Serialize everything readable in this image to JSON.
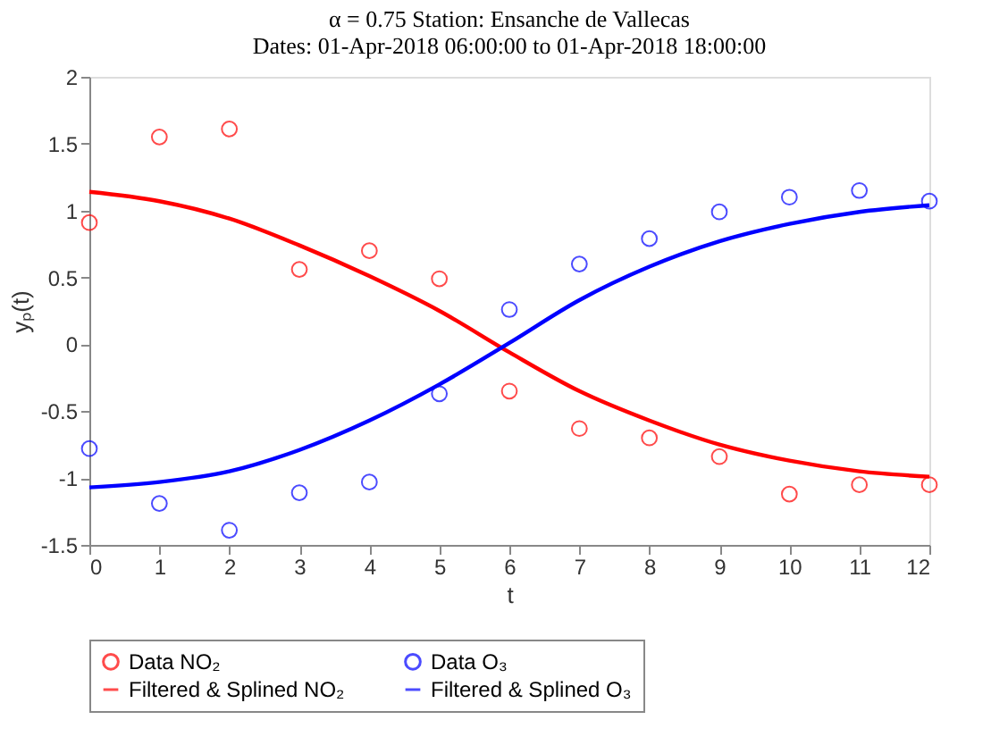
{
  "chart_data": {
    "type": "scatter",
    "title": [
      "α = 0.75 Station: Ensanche de Vallecas",
      "Dates: 01-Apr-2018 06:00:00 to 01-Apr-2018 18:00:00"
    ],
    "xlabel": "t",
    "ylabel": "yₚ(t)",
    "x": [
      0,
      1,
      2,
      3,
      4,
      5,
      6,
      7,
      8,
      9,
      10,
      11,
      12
    ],
    "series": [
      {
        "name": "Data NO₂",
        "marker": "circle",
        "color": "#ff0000",
        "values": [
          0.91,
          1.55,
          1.61,
          0.56,
          0.7,
          0.49,
          -0.35,
          -0.63,
          -0.7,
          -0.84,
          -1.12,
          -1.05,
          -1.05
        ]
      },
      {
        "name": "Data O₃",
        "marker": "circle",
        "color": "#0000ff",
        "values": [
          -0.78,
          -1.19,
          -1.39,
          -1.11,
          -1.03,
          -0.37,
          0.26,
          0.6,
          0.79,
          0.99,
          1.1,
          1.15,
          1.07
        ]
      },
      {
        "name": "Filtered & Splined NO₂",
        "type": "line",
        "marker": "none",
        "line_style": "solid",
        "color": "#ff0000",
        "values": [
          1.14,
          1.07,
          0.94,
          0.74,
          0.51,
          0.25,
          -0.06,
          -0.35,
          -0.57,
          -0.75,
          -0.87,
          -0.95,
          -0.99
        ]
      },
      {
        "name": "Filtered & Splined O₃",
        "type": "line",
        "marker": "none",
        "line_style": "solid",
        "color": "#0000ff",
        "values": [
          -1.07,
          -1.03,
          -0.95,
          -0.79,
          -0.57,
          -0.3,
          0.01,
          0.33,
          0.58,
          0.77,
          0.9,
          0.99,
          1.04
        ]
      }
    ],
    "xlim": [
      0,
      12
    ],
    "xticks": [
      0,
      1,
      2,
      3,
      4,
      5,
      6,
      7,
      8,
      9,
      10,
      11,
      12
    ],
    "ylim": [
      -1.5,
      2
    ],
    "yticks": [
      -1.5,
      -1,
      -0.5,
      0,
      0.5,
      1,
      1.5,
      2
    ],
    "grid": false,
    "legend": "bottom"
  }
}
